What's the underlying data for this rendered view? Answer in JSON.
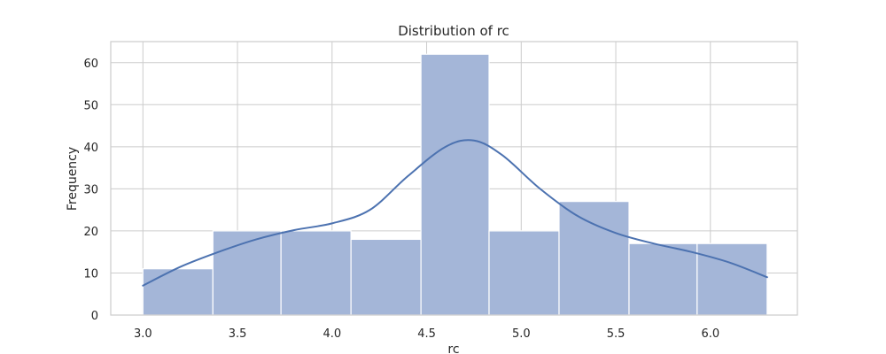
{
  "chart_data": {
    "type": "histogram",
    "title": "Distribution of rc",
    "xlabel": "rc",
    "ylabel": "Frequency",
    "xlim": [
      2.83,
      6.46
    ],
    "ylim": [
      0,
      65
    ],
    "xticks": [
      3.0,
      3.5,
      4.0,
      4.5,
      5.0,
      5.5,
      6.0
    ],
    "xtick_labels": [
      "3.0",
      "3.5",
      "4.0",
      "4.5",
      "5.0",
      "5.5",
      "6.0"
    ],
    "yticks": [
      0,
      10,
      20,
      30,
      40,
      50,
      60
    ],
    "ytick_labels": [
      "0",
      "10",
      "20",
      "30",
      "40",
      "50",
      "60"
    ],
    "grid": true,
    "bins": [
      {
        "start": 3.0,
        "end": 3.37,
        "count": 11
      },
      {
        "start": 3.37,
        "end": 3.73,
        "count": 20
      },
      {
        "start": 3.73,
        "end": 4.1,
        "count": 20
      },
      {
        "start": 4.1,
        "end": 4.47,
        "count": 18
      },
      {
        "start": 4.47,
        "end": 4.83,
        "count": 62
      },
      {
        "start": 4.83,
        "end": 5.2,
        "count": 20
      },
      {
        "start": 5.2,
        "end": 5.57,
        "count": 27
      },
      {
        "start": 5.57,
        "end": 5.93,
        "count": 17
      },
      {
        "start": 5.93,
        "end": 6.3,
        "count": 17
      }
    ],
    "kde": {
      "x": [
        3.0,
        3.2,
        3.4,
        3.6,
        3.8,
        4.0,
        4.2,
        4.4,
        4.6,
        4.75,
        4.9,
        5.1,
        5.3,
        5.5,
        5.7,
        5.9,
        6.1,
        6.3
      ],
      "y": [
        7,
        11.5,
        15,
        18,
        20.2,
        21.8,
        25,
        33,
        40,
        41.5,
        38,
        30,
        23.5,
        19.5,
        17,
        15,
        12.5,
        9
      ]
    },
    "colors": {
      "bar_fill": "#a4b6d8",
      "kde_line": "#4c72b0"
    }
  }
}
